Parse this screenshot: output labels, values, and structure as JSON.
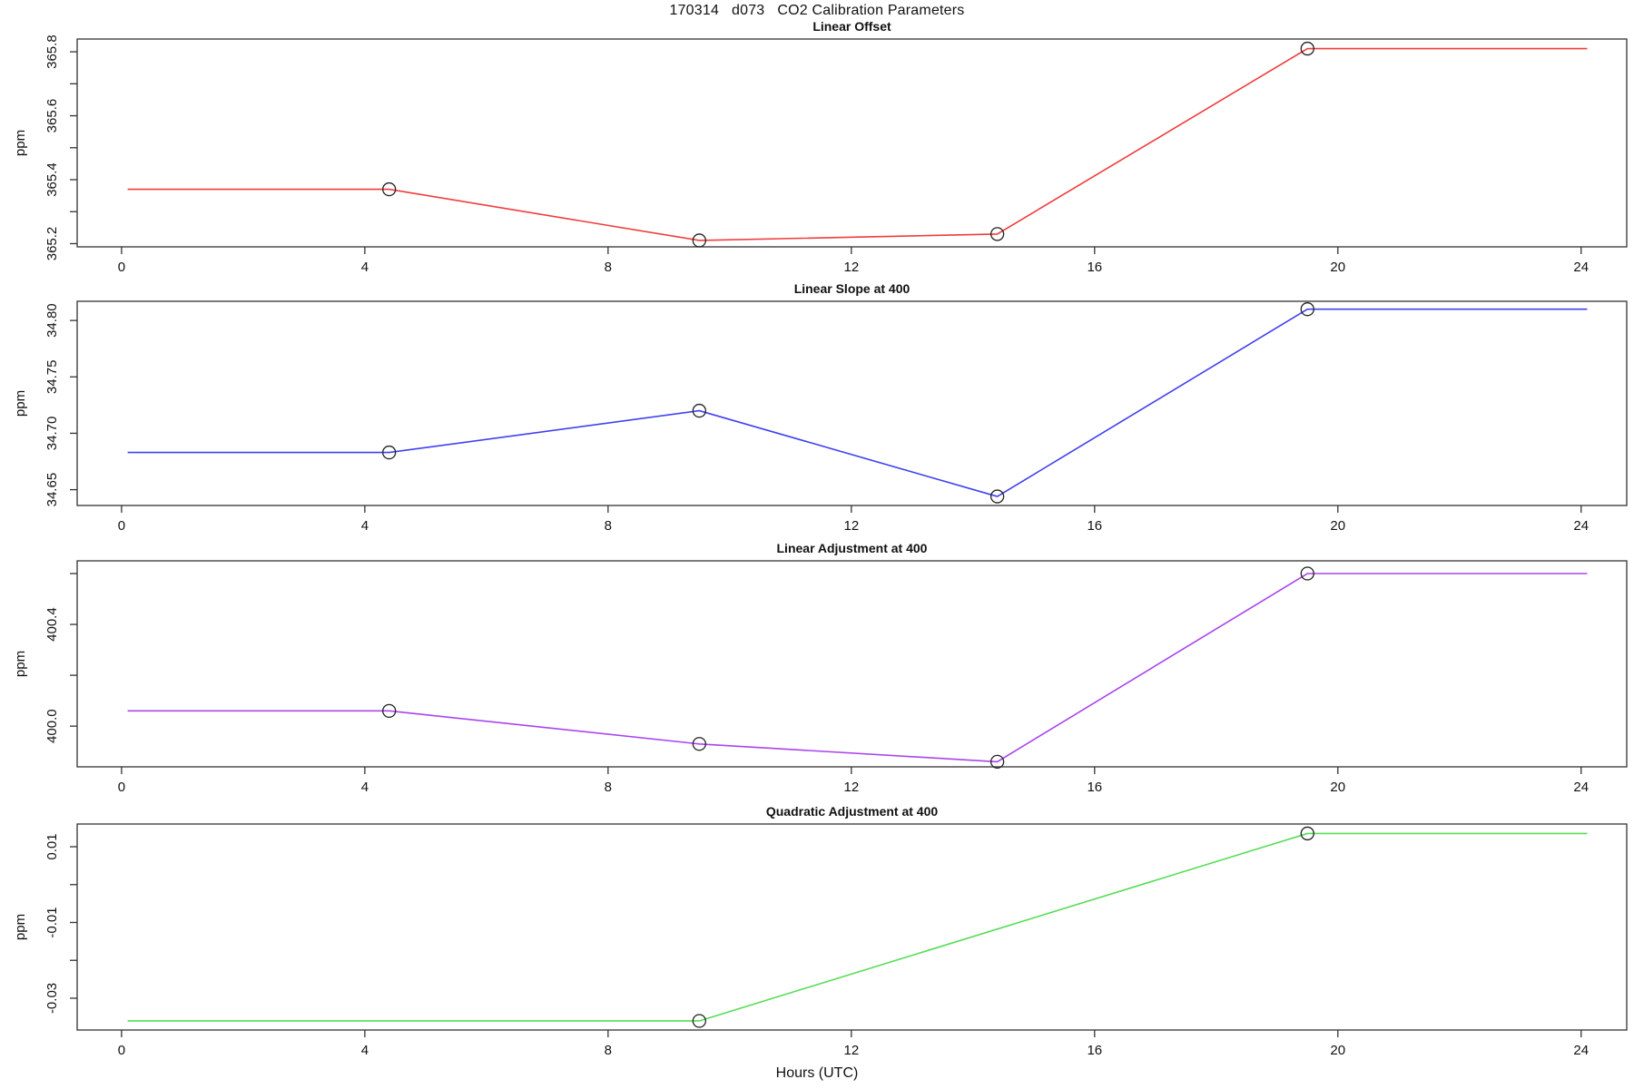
{
  "page_title": "170314   d073   CO2 Calibration Parameters",
  "x_axis_label": "Hours (UTC)",
  "chart_data": [
    {
      "type": "line",
      "title": "Linear Offset",
      "ylabel": "ppm",
      "color": "#f03c3c",
      "marker": "open-circle",
      "x": [
        0.1,
        4.4,
        9.5,
        14.4,
        19.5,
        24.1
      ],
      "y": [
        365.37,
        365.37,
        365.21,
        365.23,
        365.81,
        365.81
      ],
      "markers_x": [
        4.4,
        9.5,
        14.4,
        19.5
      ],
      "markers_y": [
        365.37,
        365.21,
        365.23,
        365.81
      ],
      "xlim": [
        -0.73,
        24.75
      ],
      "ylim": [
        365.19,
        365.84
      ],
      "xticks": [
        0,
        4,
        8,
        12,
        16,
        20,
        24
      ],
      "yticks": [
        365.2,
        365.3,
        365.4,
        365.5,
        365.6,
        365.7,
        365.8
      ],
      "ytick_labels": [
        "365.2",
        "",
        "365.4",
        "",
        "365.6",
        "",
        "365.8"
      ],
      "grid": false,
      "legend": "none"
    },
    {
      "type": "line",
      "title": "Linear Slope at 400",
      "ylabel": "ppm",
      "color": "#4040f0",
      "marker": "open-circle",
      "x": [
        0.1,
        4.4,
        9.5,
        14.4,
        19.5,
        24.1
      ],
      "y": [
        34.683,
        34.683,
        34.72,
        34.644,
        34.81,
        34.81
      ],
      "markers_x": [
        4.4,
        9.5,
        14.4,
        19.5
      ],
      "markers_y": [
        34.683,
        34.72,
        34.644,
        34.81
      ],
      "xlim": [
        -0.73,
        24.75
      ],
      "ylim": [
        34.636,
        34.817
      ],
      "xticks": [
        0,
        4,
        8,
        12,
        16,
        20,
        24
      ],
      "yticks": [
        34.65,
        34.7,
        34.75,
        34.8
      ],
      "ytick_labels": [
        "34.65",
        "34.70",
        "34.75",
        "34.80"
      ],
      "grid": false,
      "legend": "none"
    },
    {
      "type": "line",
      "title": "Linear Adjustment at 400",
      "ylabel": "ppm",
      "color": "#aa44ee",
      "marker": "open-circle",
      "x": [
        0.1,
        4.4,
        9.5,
        14.4,
        19.5,
        24.1
      ],
      "y": [
        400.06,
        400.06,
        399.93,
        399.86,
        400.6,
        400.6
      ],
      "markers_x": [
        4.4,
        9.5,
        14.4,
        19.5
      ],
      "markers_y": [
        400.06,
        399.93,
        399.86,
        400.6
      ],
      "xlim": [
        -0.73,
        24.75
      ],
      "ylim": [
        399.84,
        400.65
      ],
      "xticks": [
        0,
        4,
        8,
        12,
        16,
        20,
        24
      ],
      "yticks": [
        400.0,
        400.2,
        400.4,
        400.6
      ],
      "ytick_labels": [
        "400.0",
        "",
        "400.4",
        ""
      ],
      "grid": false,
      "legend": "none"
    },
    {
      "type": "line",
      "title": "Quadratic Adjustment at 400",
      "ylabel": "ppm",
      "color": "#55dd55",
      "marker": "open-circle",
      "x": [
        0.1,
        9.5,
        19.5,
        24.1
      ],
      "y": [
        -0.036,
        -0.036,
        0.0135,
        0.0135
      ],
      "markers_x": [
        9.5,
        19.5
      ],
      "markers_y": [
        -0.036,
        0.0135
      ],
      "xlim": [
        -0.73,
        24.75
      ],
      "ylim": [
        -0.0384,
        0.016
      ],
      "xticks": [
        0,
        4,
        8,
        12,
        16,
        20,
        24
      ],
      "yticks": [
        -0.03,
        -0.02,
        -0.01,
        0,
        0.01
      ],
      "ytick_labels": [
        "-0.03",
        "",
        "-0.01",
        "",
        "0.01"
      ],
      "grid": false,
      "legend": "none"
    }
  ]
}
